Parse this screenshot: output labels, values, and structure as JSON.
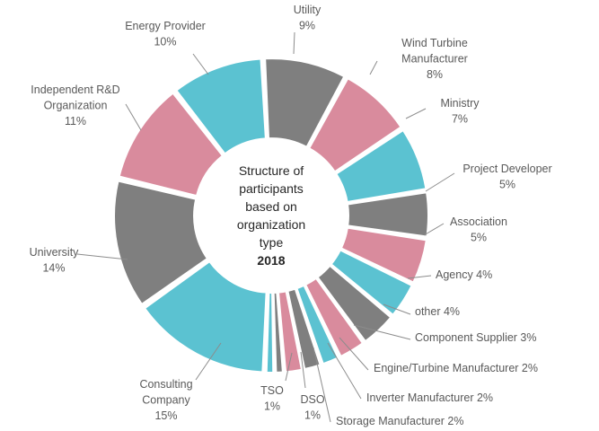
{
  "chart_data": {
    "type": "pie",
    "variant": "donut",
    "center_title_lines": [
      "Structure of",
      "participants",
      "based on",
      "organization",
      "type"
    ],
    "center_year": "2018",
    "colors": {
      "gray": "#7f7f7f",
      "pink": "#d98b9d",
      "teal": "#5bc2d1"
    },
    "slices": [
      {
        "name": "Utility",
        "label_lines": [
          "Utility",
          "9%"
        ],
        "value": 9,
        "color": "#7f7f7f"
      },
      {
        "name": "Wind Turbine Manufacturer",
        "label_lines": [
          "Wind Turbine",
          "Manufacturer",
          "8%"
        ],
        "value": 8,
        "color": "#d98b9d"
      },
      {
        "name": "Ministry",
        "label_lines": [
          "Ministry",
          "7%"
        ],
        "value": 7,
        "color": "#5bc2d1"
      },
      {
        "name": "Project Developer",
        "label_lines": [
          "Project Developer",
          "5%"
        ],
        "value": 5,
        "color": "#7f7f7f"
      },
      {
        "name": "Association",
        "label_lines": [
          "Association",
          "5%"
        ],
        "value": 5,
        "color": "#d98b9d"
      },
      {
        "name": "Agency",
        "label_lines": [
          "Agency 4%"
        ],
        "value": 4,
        "color": "#5bc2d1"
      },
      {
        "name": "other",
        "label_lines": [
          "other 4%"
        ],
        "value": 4,
        "color": "#7f7f7f"
      },
      {
        "name": "Component Supplier",
        "label_lines": [
          "Component Supplier 3%"
        ],
        "value": 3,
        "color": "#d98b9d"
      },
      {
        "name": "Engine/Turbine Manufacturer",
        "label_lines": [
          "Engine/Turbine Manufacturer 2%"
        ],
        "value": 2,
        "color": "#5bc2d1"
      },
      {
        "name": "Inverter Manufacturer",
        "label_lines": [
          "Inverter Manufacturer 2%"
        ],
        "value": 2,
        "color": "#7f7f7f"
      },
      {
        "name": "Storage Manufacturer",
        "label_lines": [
          "Storage Manufacturer 2%"
        ],
        "value": 2,
        "color": "#d98b9d"
      },
      {
        "name": "DSO",
        "label_lines": [
          "DSO",
          "1%"
        ],
        "value": 1,
        "color": "#7f7f7f"
      },
      {
        "name": "TSO",
        "label_lines": [
          "TSO",
          "1%"
        ],
        "value": 1,
        "color": "#5bc2d1"
      },
      {
        "name": "Consulting Company",
        "label_lines": [
          "Consulting",
          "Company",
          "15%"
        ],
        "value": 15,
        "color": "#5bc2d1"
      },
      {
        "name": "University",
        "label_lines": [
          "University",
          "14%"
        ],
        "value": 14,
        "color": "#7f7f7f"
      },
      {
        "name": "Independent R&D Organization",
        "label_lines": [
          "Independent R&D",
          "Organization",
          "11%"
        ],
        "value": 11,
        "color": "#d98b9d"
      },
      {
        "name": "Energy Provider",
        "label_lines": [
          "Energy Provider",
          "10%"
        ],
        "value": 10,
        "color": "#5bc2d1"
      }
    ]
  }
}
